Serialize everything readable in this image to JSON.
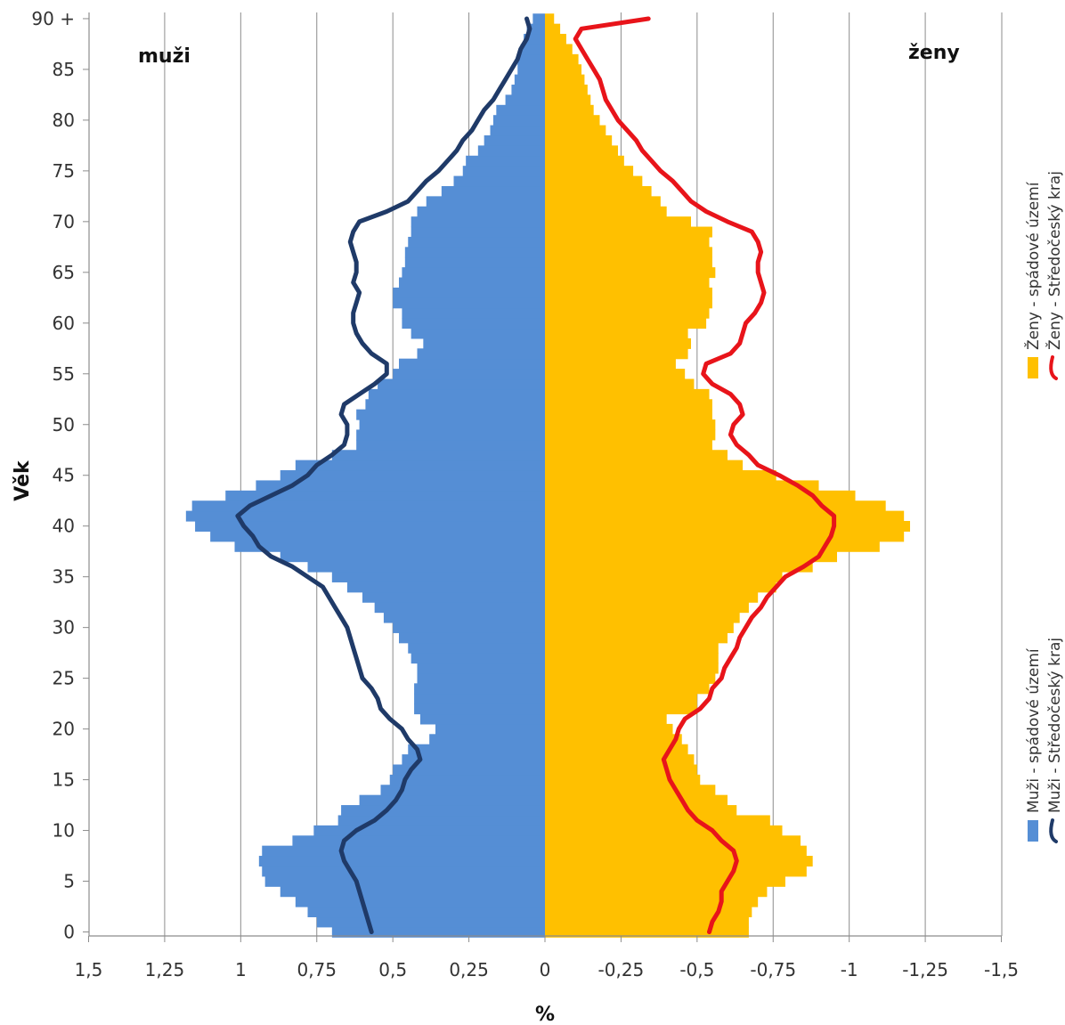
{
  "chart_data": {
    "type": "population pyramid (bar + line)",
    "xlabel": "%",
    "ylabel": "Věk",
    "xlim": [
      1.5,
      -1.5
    ],
    "x_ticks": [
      "1,5",
      "1,25",
      "1",
      "0,75",
      "0,5",
      "0,25",
      "0",
      "-0,25",
      "-0,5",
      "-0,75",
      "-1",
      "-1,25",
      "-1,5"
    ],
    "x_tick_values": [
      1.5,
      1.25,
      1,
      0.75,
      0.5,
      0.25,
      0,
      -0.25,
      -0.5,
      -0.75,
      -1,
      -1.25,
      -1.5
    ],
    "y_ticks": [
      "0",
      "5",
      "10",
      "15",
      "20",
      "25",
      "30",
      "35",
      "40",
      "45",
      "50",
      "55",
      "60",
      "65",
      "70",
      "75",
      "80",
      "85",
      "90 +"
    ],
    "y_tick_values": [
      0,
      5,
      10,
      15,
      20,
      25,
      30,
      35,
      40,
      45,
      50,
      55,
      60,
      65,
      70,
      75,
      80,
      85,
      90
    ],
    "ylim": [
      0,
      90
    ],
    "grid": "vertical",
    "left_label": "muži",
    "right_label": "ženy",
    "ages": [
      0,
      1,
      2,
      3,
      4,
      5,
      6,
      7,
      8,
      9,
      10,
      11,
      12,
      13,
      14,
      15,
      16,
      17,
      18,
      19,
      20,
      21,
      22,
      23,
      24,
      25,
      26,
      27,
      28,
      29,
      30,
      31,
      32,
      33,
      34,
      35,
      36,
      37,
      38,
      39,
      40,
      41,
      42,
      43,
      44,
      45,
      46,
      47,
      48,
      49,
      50,
      51,
      52,
      53,
      54,
      55,
      56,
      57,
      58,
      59,
      60,
      61,
      62,
      63,
      64,
      65,
      66,
      67,
      68,
      69,
      70,
      71,
      72,
      73,
      74,
      75,
      76,
      77,
      78,
      79,
      80,
      81,
      82,
      83,
      84,
      85,
      86,
      87,
      88,
      89,
      90
    ],
    "series": [
      {
        "name": "Muži - spádové území",
        "kind": "bar",
        "color": "#558ed5",
        "values": [
          0.7,
          0.75,
          0.78,
          0.82,
          0.87,
          0.92,
          0.93,
          0.94,
          0.93,
          0.83,
          0.76,
          0.68,
          0.67,
          0.61,
          0.54,
          0.51,
          0.5,
          0.47,
          0.45,
          0.38,
          0.36,
          0.41,
          0.43,
          0.43,
          0.43,
          0.42,
          0.42,
          0.44,
          0.45,
          0.48,
          0.5,
          0.53,
          0.56,
          0.6,
          0.65,
          0.7,
          0.78,
          0.87,
          1.02,
          1.1,
          1.15,
          1.18,
          1.16,
          1.05,
          0.95,
          0.87,
          0.82,
          0.7,
          0.62,
          0.62,
          0.61,
          0.62,
          0.59,
          0.58,
          0.55,
          0.5,
          0.48,
          0.42,
          0.4,
          0.44,
          0.47,
          0.47,
          0.5,
          0.5,
          0.48,
          0.47,
          0.46,
          0.46,
          0.45,
          0.44,
          0.44,
          0.42,
          0.39,
          0.34,
          0.3,
          0.27,
          0.26,
          0.22,
          0.2,
          0.18,
          0.17,
          0.16,
          0.13,
          0.11,
          0.1,
          0.09,
          0.09,
          0.08,
          0.07,
          0.06,
          0.04
        ]
      },
      {
        "name": "Muži - Středočeský kraj",
        "kind": "line",
        "color": "#1f3a68",
        "values": [
          0.57,
          0.58,
          0.59,
          0.6,
          0.61,
          0.62,
          0.64,
          0.66,
          0.67,
          0.66,
          0.62,
          0.56,
          0.52,
          0.49,
          0.47,
          0.46,
          0.44,
          0.41,
          0.42,
          0.45,
          0.47,
          0.51,
          0.54,
          0.55,
          0.57,
          0.6,
          0.61,
          0.62,
          0.63,
          0.64,
          0.65,
          0.67,
          0.69,
          0.71,
          0.73,
          0.78,
          0.83,
          0.9,
          0.94,
          0.96,
          0.99,
          1.01,
          0.97,
          0.9,
          0.83,
          0.78,
          0.75,
          0.7,
          0.66,
          0.65,
          0.65,
          0.67,
          0.66,
          0.61,
          0.56,
          0.52,
          0.52,
          0.57,
          0.6,
          0.62,
          0.63,
          0.63,
          0.62,
          0.61,
          0.63,
          0.62,
          0.62,
          0.63,
          0.64,
          0.63,
          0.61,
          0.52,
          0.45,
          0.42,
          0.39,
          0.35,
          0.32,
          0.29,
          0.27,
          0.24,
          0.22,
          0.2,
          0.17,
          0.15,
          0.13,
          0.11,
          0.09,
          0.08,
          0.06,
          0.05,
          0.06
        ]
      },
      {
        "name": "Ženy - spádové území",
        "kind": "bar",
        "color": "#ffc000",
        "values": [
          0.67,
          0.67,
          0.68,
          0.7,
          0.73,
          0.79,
          0.86,
          0.88,
          0.86,
          0.84,
          0.78,
          0.74,
          0.63,
          0.6,
          0.56,
          0.51,
          0.5,
          0.49,
          0.47,
          0.45,
          0.42,
          0.4,
          0.5,
          0.5,
          0.54,
          0.56,
          0.57,
          0.57,
          0.57,
          0.6,
          0.62,
          0.64,
          0.67,
          0.7,
          0.76,
          0.78,
          0.88,
          0.96,
          1.1,
          1.18,
          1.2,
          1.18,
          1.12,
          1.02,
          0.9,
          0.76,
          0.65,
          0.6,
          0.55,
          0.56,
          0.56,
          0.55,
          0.55,
          0.54,
          0.49,
          0.46,
          0.43,
          0.47,
          0.48,
          0.47,
          0.53,
          0.54,
          0.55,
          0.55,
          0.54,
          0.56,
          0.55,
          0.55,
          0.54,
          0.55,
          0.48,
          0.4,
          0.38,
          0.35,
          0.32,
          0.29,
          0.26,
          0.24,
          0.22,
          0.2,
          0.18,
          0.16,
          0.15,
          0.14,
          0.13,
          0.12,
          0.11,
          0.09,
          0.07,
          0.05,
          0.03
        ]
      },
      {
        "name": "Ženy - Středočeský kraj",
        "kind": "line",
        "color": "#e8141a",
        "values": [
          0.54,
          0.55,
          0.57,
          0.58,
          0.58,
          0.6,
          0.62,
          0.63,
          0.62,
          0.58,
          0.55,
          0.5,
          0.47,
          0.45,
          0.43,
          0.41,
          0.4,
          0.39,
          0.41,
          0.43,
          0.44,
          0.46,
          0.51,
          0.54,
          0.55,
          0.58,
          0.59,
          0.61,
          0.63,
          0.64,
          0.66,
          0.68,
          0.71,
          0.73,
          0.76,
          0.79,
          0.85,
          0.9,
          0.92,
          0.94,
          0.95,
          0.95,
          0.91,
          0.88,
          0.83,
          0.77,
          0.7,
          0.67,
          0.63,
          0.61,
          0.62,
          0.65,
          0.64,
          0.61,
          0.55,
          0.52,
          0.53,
          0.61,
          0.64,
          0.65,
          0.66,
          0.69,
          0.71,
          0.72,
          0.71,
          0.7,
          0.7,
          0.71,
          0.7,
          0.68,
          0.6,
          0.53,
          0.48,
          0.45,
          0.42,
          0.38,
          0.35,
          0.32,
          0.3,
          0.27,
          0.24,
          0.22,
          0.2,
          0.19,
          0.18,
          0.16,
          0.14,
          0.12,
          0.1,
          0.12,
          0.34
        ]
      }
    ]
  },
  "legend": {
    "groups": [
      {
        "items": [
          {
            "label": "Ženy - spádové území",
            "kind": "bar",
            "color": "#ffc000"
          },
          {
            "label": "Ženy - Středočeský kraj",
            "kind": "line",
            "color": "#e8141a"
          }
        ]
      },
      {
        "items": [
          {
            "label": "Muži - spádové území",
            "kind": "bar",
            "color": "#558ed5"
          },
          {
            "label": "Muži - Středočeský kraj",
            "kind": "line",
            "color": "#1f3a68"
          }
        ]
      }
    ]
  }
}
